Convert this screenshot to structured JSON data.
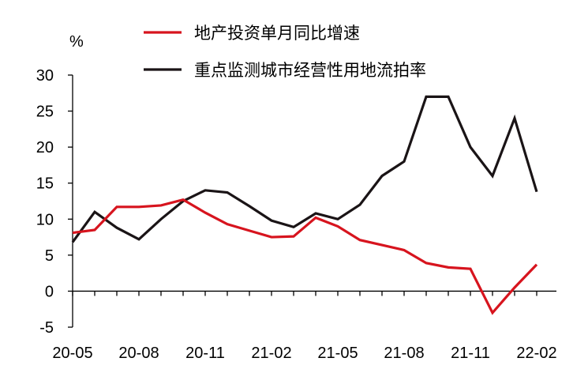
{
  "chart_data": {
    "type": "line",
    "ylabel": "%",
    "ylim": [
      -5,
      30
    ],
    "yticks": [
      -5,
      0,
      5,
      10,
      15,
      20,
      25,
      30
    ],
    "x": [
      "20-05",
      "20-06",
      "20-07",
      "20-08",
      "20-09",
      "20-10",
      "20-11",
      "20-12",
      "21-01",
      "21-02",
      "21-03",
      "21-04",
      "21-05",
      "21-06",
      "21-07",
      "21-08",
      "21-09",
      "21-10",
      "21-11",
      "21-12",
      "22-01",
      "22-02"
    ],
    "xtick_labels": [
      "20-05",
      "20-08",
      "20-11",
      "21-02",
      "21-05",
      "21-08",
      "21-11",
      "22-02"
    ],
    "grid": false,
    "legend_position": "top",
    "series": [
      {
        "name": "地产投资单月同比增速",
        "color": "#d7141e",
        "values": [
          8.1,
          8.5,
          11.7,
          11.7,
          11.9,
          12.7,
          10.9,
          9.3,
          8.4,
          7.5,
          7.6,
          10.2,
          9.0,
          7.1,
          6.4,
          5.7,
          3.9,
          3.3,
          3.1,
          -3.0,
          0.5,
          3.7
        ]
      },
      {
        "name": "重点监测城市经营性用地流拍率",
        "color": "#1a1416",
        "values": [
          6.8,
          11.0,
          8.8,
          7.2,
          10.0,
          12.5,
          14.0,
          13.7,
          11.8,
          9.8,
          8.9,
          10.8,
          10.0,
          12.0,
          16.0,
          18.0,
          27.0,
          27.0,
          20.0,
          16.0,
          24.0,
          13.8
        ]
      }
    ]
  }
}
